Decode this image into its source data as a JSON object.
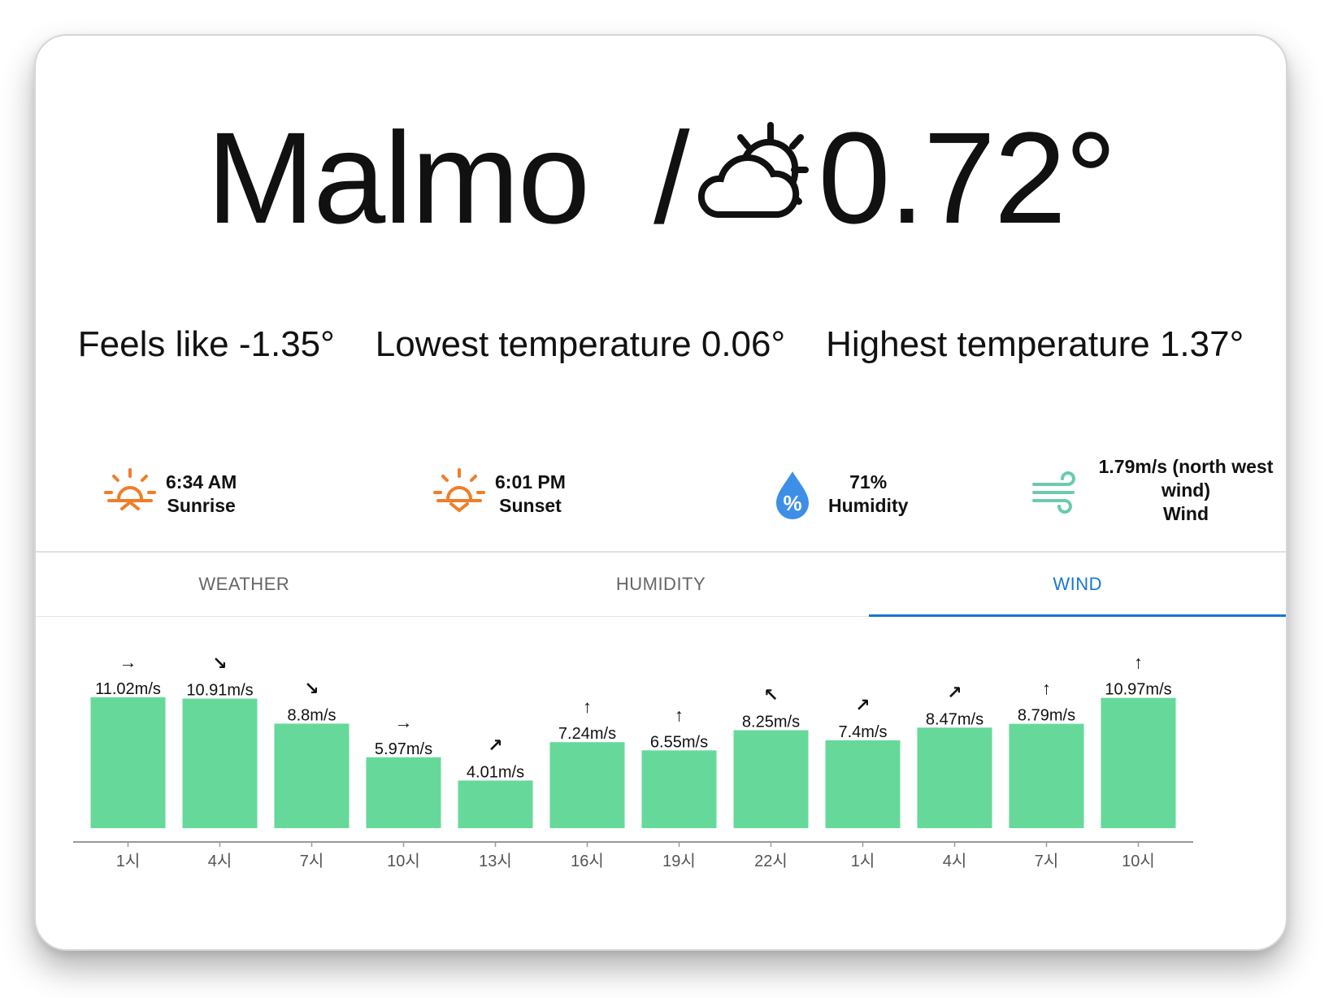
{
  "header": {
    "city": "Malmo",
    "separator": "/",
    "weather_icon": "partly-cloudy-day-icon",
    "temperature": "0.72°"
  },
  "temps": {
    "feels_like": "Feels like -1.35°",
    "lowest": "Lowest temperature 0.06°",
    "highest": "Highest temperature 1.37°"
  },
  "stats": {
    "sunrise": {
      "value": "6:34 AM",
      "label": "Sunrise",
      "icon": "sunrise-icon"
    },
    "sunset": {
      "value": "6:01 PM",
      "label": "Sunset",
      "icon": "sunset-icon"
    },
    "humidity": {
      "value": "71%",
      "label": "Humidity",
      "icon": "humidity-drop-icon"
    },
    "wind": {
      "value": "1.79m/s (north west wind)",
      "label": "Wind",
      "icon": "wind-icon"
    }
  },
  "tabs": [
    {
      "label": "WEATHER",
      "active": false
    },
    {
      "label": "HUMIDITY",
      "active": false
    },
    {
      "label": "WIND",
      "active": true
    }
  ],
  "colors": {
    "bar": "#66d99a",
    "accent": "#1976d2",
    "sun": "#f07d27",
    "drop": "#3d8fe6",
    "wind": "#6cc9b0"
  },
  "chart_data": {
    "type": "bar",
    "categories": [
      "1시",
      "4시",
      "7시",
      "10시",
      "13시",
      "16시",
      "19시",
      "22시",
      "1시",
      "4시",
      "7시",
      "10시"
    ],
    "series": [
      {
        "values": [
          11.02,
          10.91,
          8.8,
          5.97,
          4.01,
          7.24,
          6.55,
          8.25,
          7.4,
          8.47,
          8.79,
          10.97
        ]
      }
    ],
    "data_labels": [
      "11.02m/s",
      "10.91m/s",
      "8.8m/s",
      "5.97m/s",
      "4.01m/s",
      "7.24m/s",
      "6.55m/s",
      "8.25m/s",
      "7.4m/s",
      "8.47m/s",
      "8.79m/s",
      "10.97m/s"
    ],
    "direction_arrows": [
      "→",
      "↘",
      "↘",
      "→",
      "↗",
      "↑",
      "↑",
      "↖",
      "↗",
      "↗",
      "↑",
      "↑"
    ],
    "ylim": [
      0,
      11.02
    ],
    "grid": false,
    "legend": "none"
  }
}
